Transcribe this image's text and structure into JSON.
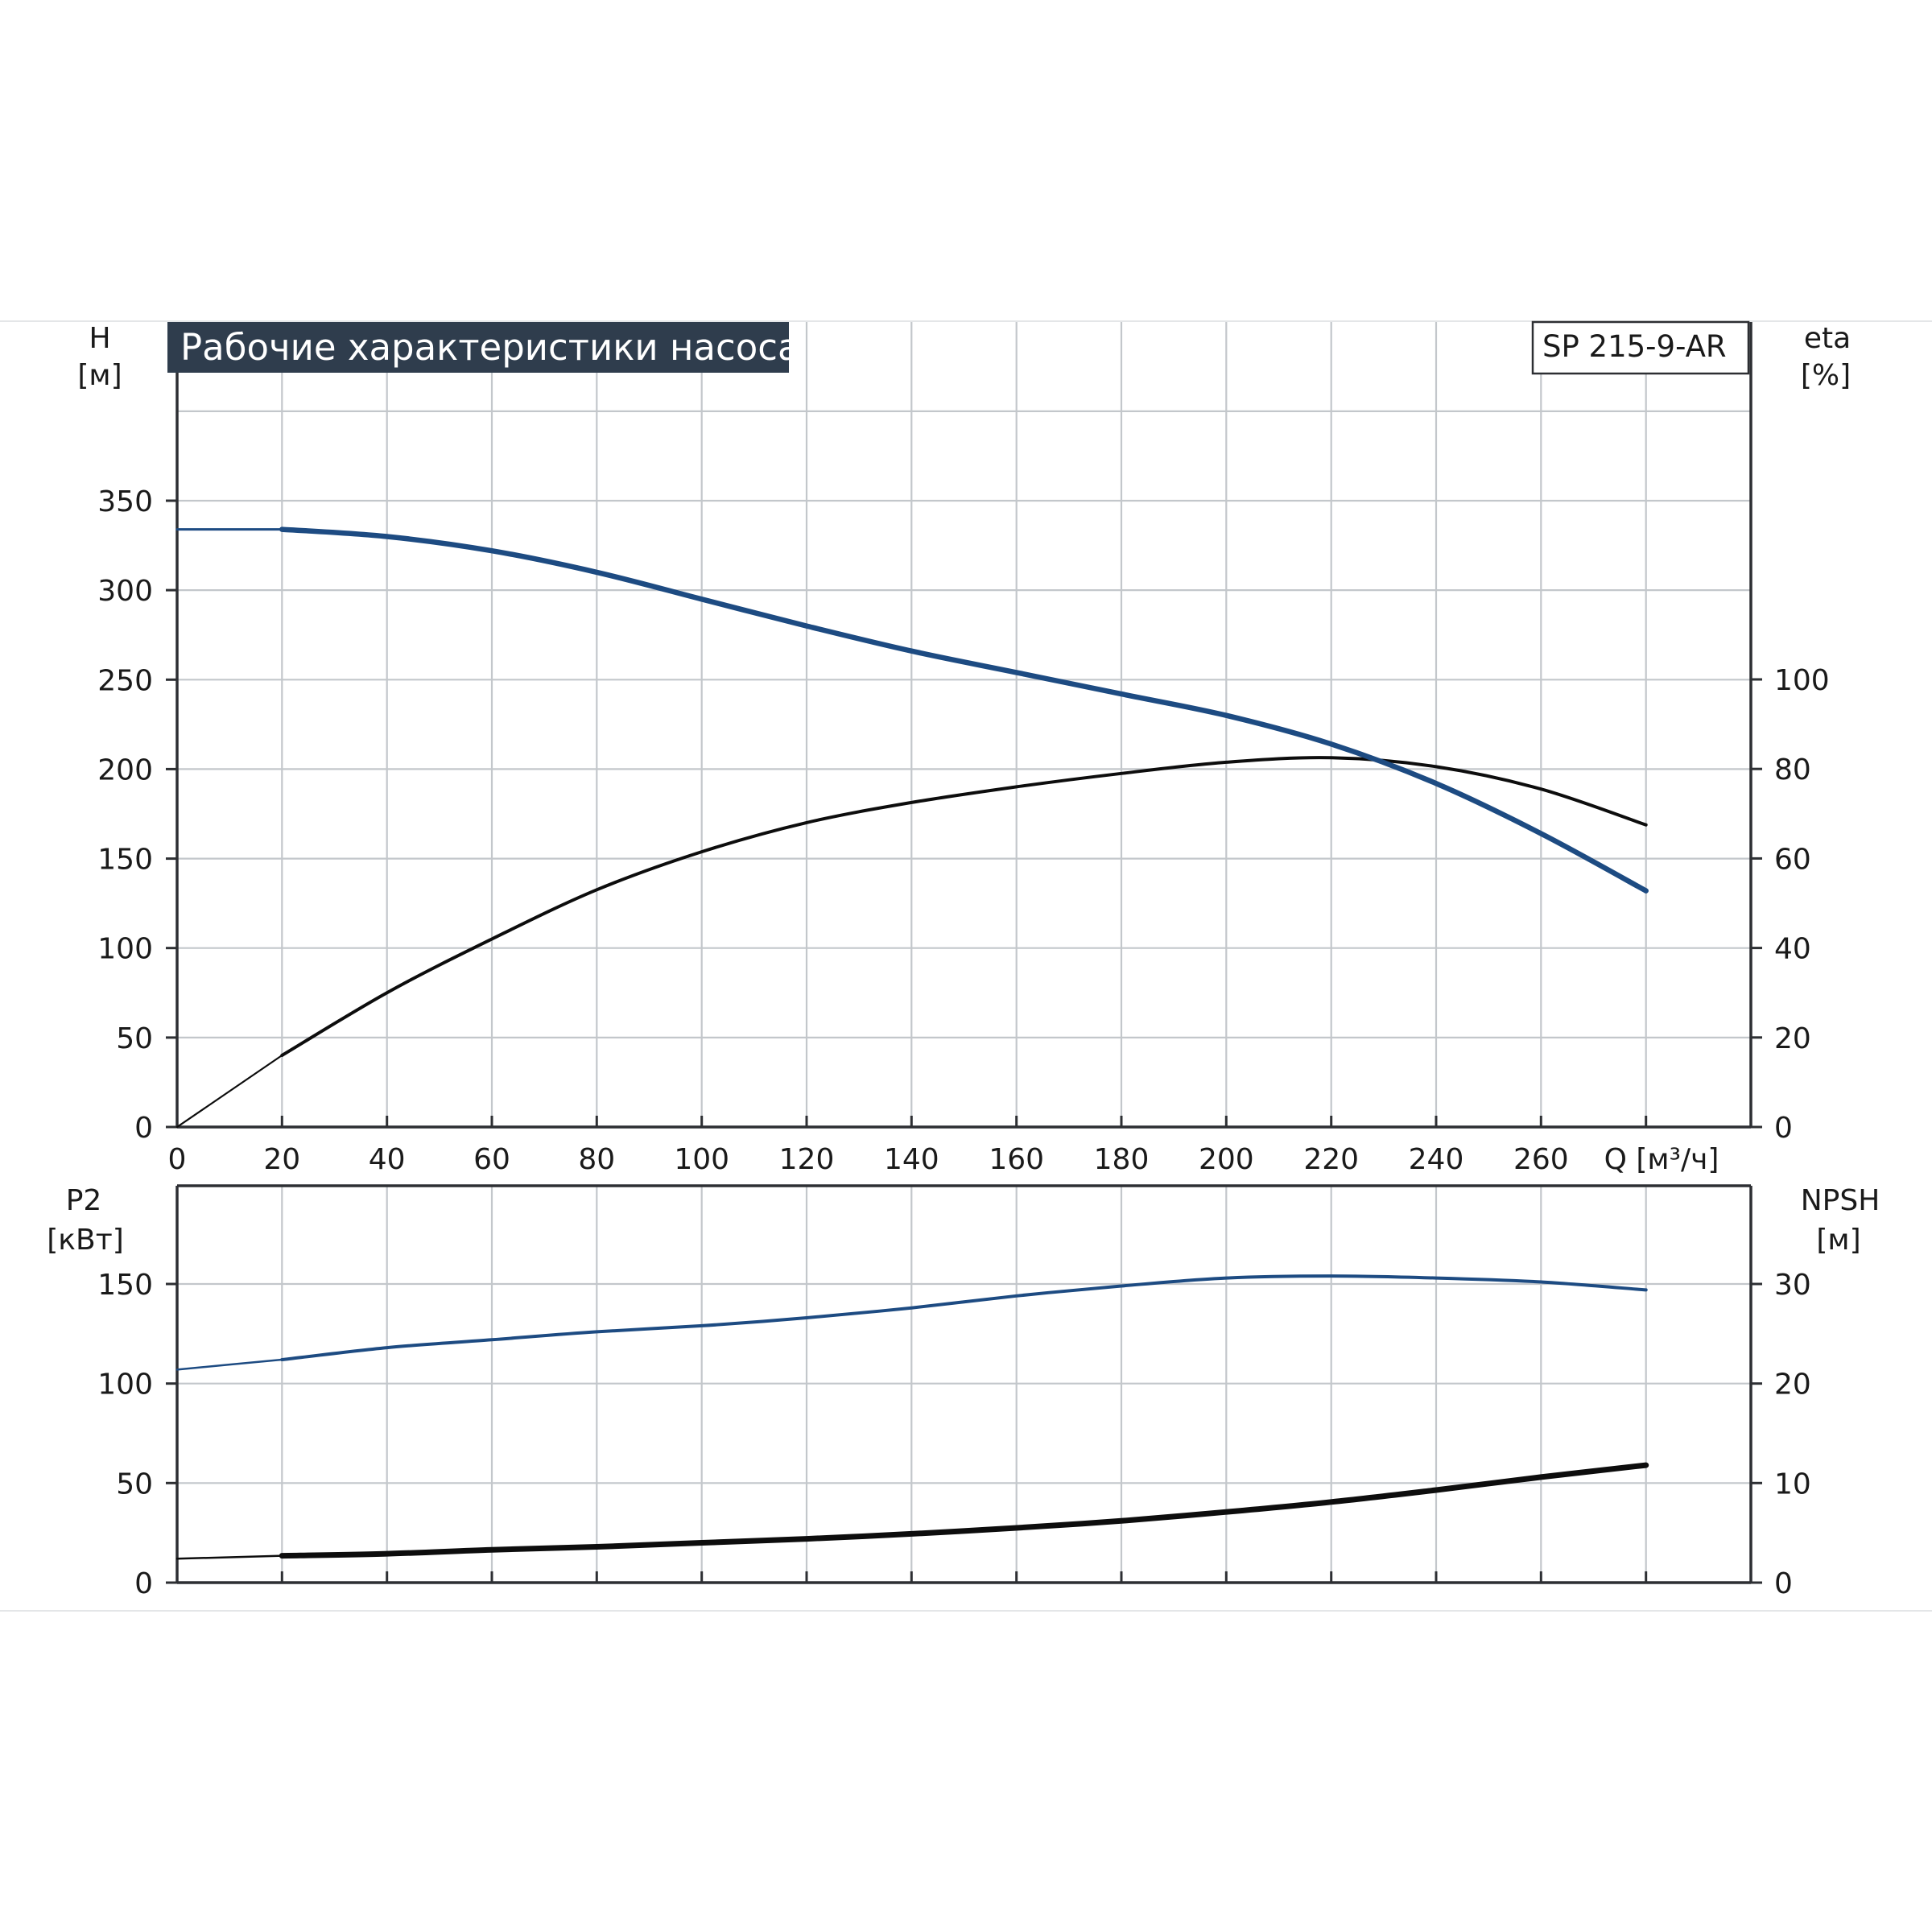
{
  "header": {
    "title": "Рабочие характеристики насоса",
    "model": "SP 215-9-AR"
  },
  "colors": {
    "title_bg": "#2f3d4d",
    "blue_curve": "#1d4b82",
    "black_curve": "#0d0d0d",
    "grid": "#c3c7cb"
  },
  "chart_data": [
    {
      "type": "line",
      "x": {
        "label": "Q [м³/ч]",
        "range": [
          0,
          300
        ],
        "ticks": [
          "0",
          "20",
          "40",
          "60",
          "80",
          "100",
          "120",
          "140",
          "160",
          "180",
          "200",
          "220",
          "240",
          "260"
        ]
      },
      "y_left": {
        "label_line1": "H",
        "label_line2": "[м]",
        "range": [
          0,
          350
        ],
        "ticks": [
          "0",
          "50",
          "100",
          "150",
          "200",
          "250",
          "300",
          "350"
        ]
      },
      "y_right": {
        "label_line1": "eta",
        "label_line2": "[%]",
        "range": [
          0,
          100
        ],
        "ticks": [
          "0",
          "20",
          "40",
          "60",
          "80",
          "100"
        ]
      },
      "grid": true,
      "series": [
        {
          "axis": "left",
          "color": "#1d4b82",
          "points": [
            [
              0,
              334
            ],
            [
              20,
              334
            ],
            [
              40,
              330
            ],
            [
              60,
              322
            ],
            [
              80,
              310
            ],
            [
              100,
              295
            ],
            [
              120,
              280
            ],
            [
              140,
              266
            ],
            [
              160,
              254
            ],
            [
              180,
              242
            ],
            [
              200,
              230
            ],
            [
              220,
              214
            ],
            [
              240,
              192
            ],
            [
              260,
              164
            ],
            [
              280,
              132
            ]
          ]
        },
        {
          "axis": "right",
          "color": "#0d0d0d",
          "points": [
            [
              0,
              0
            ],
            [
              20,
              16
            ],
            [
              40,
              30
            ],
            [
              60,
              42
            ],
            [
              80,
              53
            ],
            [
              100,
              61.5
            ],
            [
              120,
              68
            ],
            [
              140,
              72.5
            ],
            [
              160,
              76
            ],
            [
              180,
              79
            ],
            [
              200,
              81.5
            ],
            [
              220,
              82.5
            ],
            [
              240,
              80.5
            ],
            [
              260,
              75.5
            ],
            [
              280,
              67.5
            ]
          ]
        }
      ]
    },
    {
      "type": "line",
      "x": {
        "label": "Q [м³/ч]",
        "range": [
          0,
          300
        ]
      },
      "y_left": {
        "label_line1": "P2",
        "label_line2": "[кВт]",
        "range": [
          0,
          150
        ],
        "ticks": [
          "0",
          "50",
          "100",
          "150"
        ]
      },
      "y_right": {
        "label_line1": "NPSH",
        "label_line2": "[м]",
        "range": [
          0,
          30
        ],
        "ticks": [
          "0",
          "10",
          "20",
          "30"
        ]
      },
      "grid": true,
      "series": [
        {
          "axis": "left",
          "color": "#1d4b82",
          "points": [
            [
              0,
              107
            ],
            [
              20,
              112
            ],
            [
              40,
              118
            ],
            [
              60,
              122
            ],
            [
              80,
              126
            ],
            [
              100,
              129
            ],
            [
              120,
              133
            ],
            [
              140,
              138
            ],
            [
              160,
              144
            ],
            [
              180,
              149
            ],
            [
              200,
              153
            ],
            [
              220,
              154
            ],
            [
              240,
              153
            ],
            [
              260,
              151
            ],
            [
              280,
              147
            ]
          ]
        },
        {
          "axis": "right",
          "color": "#0d0d0d",
          "points": [
            [
              0,
              2.4
            ],
            [
              20,
              2.7
            ],
            [
              40,
              2.9
            ],
            [
              60,
              3.3
            ],
            [
              80,
              3.6
            ],
            [
              100,
              4.0
            ],
            [
              120,
              4.4
            ],
            [
              140,
              4.9
            ],
            [
              160,
              5.5
            ],
            [
              180,
              6.2
            ],
            [
              200,
              7.1
            ],
            [
              220,
              8.1
            ],
            [
              240,
              9.3
            ],
            [
              260,
              10.6
            ],
            [
              280,
              11.8
            ]
          ]
        }
      ]
    }
  ]
}
